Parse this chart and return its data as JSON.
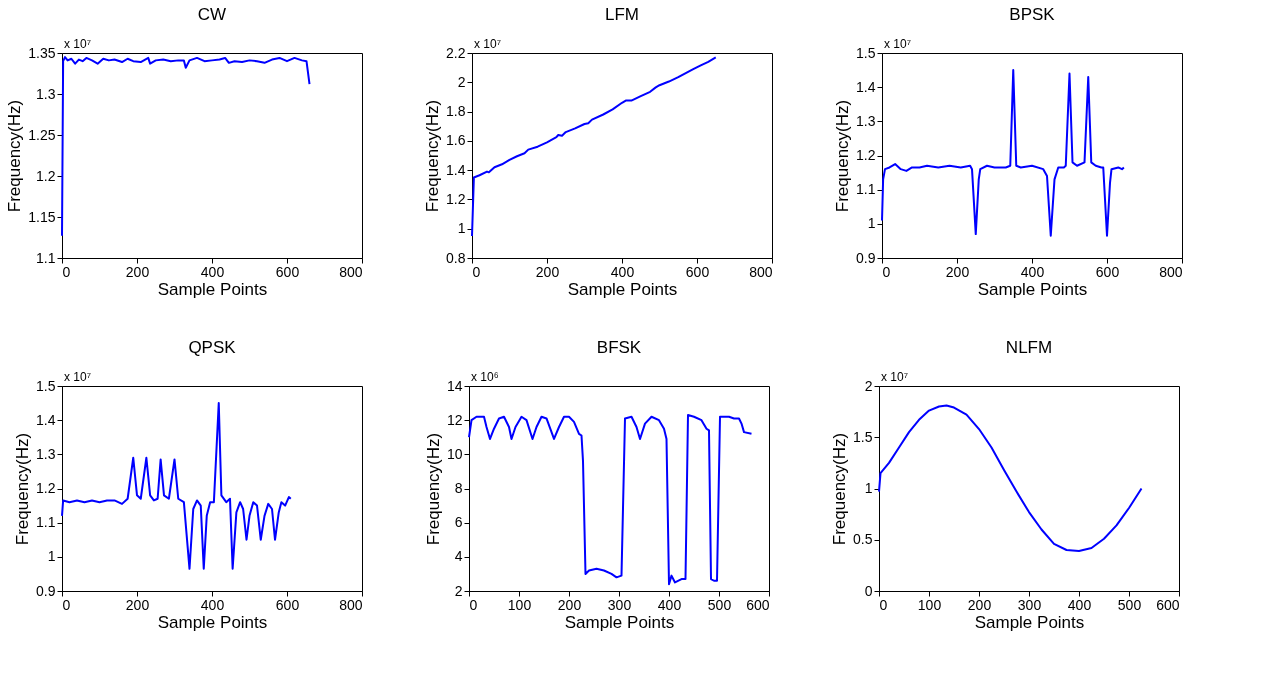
{
  "chart_data": [
    {
      "type": "line",
      "title": "CW",
      "xlabel": "Sample Points",
      "ylabel": "Frequency(Hz)",
      "annotations": [
        "x 10⁷"
      ],
      "xlim": [
        0,
        800
      ],
      "xticks": [
        0,
        200,
        400,
        600,
        800
      ],
      "ylim": [
        1.1,
        1.35
      ],
      "yticks": [
        1.1,
        1.15,
        1.2,
        1.25,
        1.3,
        1.35
      ],
      "grid": false,
      "marker": "none",
      "line_style": "solid",
      "series": [
        {
          "color": "#0000ff",
          "x": [
            0,
            3,
            8,
            15,
            25,
            35,
            45,
            55,
            65,
            80,
            95,
            110,
            125,
            140,
            160,
            175,
            190,
            210,
            230,
            235,
            250,
            270,
            290,
            310,
            325,
            330,
            340,
            360,
            380,
            400,
            420,
            435,
            445,
            460,
            480,
            500,
            520,
            540,
            560,
            580,
            600,
            620,
            640,
            652,
            660
          ],
          "values": [
            1.127,
            1.34,
            1.345,
            1.341,
            1.343,
            1.337,
            1.342,
            1.34,
            1.344,
            1.341,
            1.337,
            1.343,
            1.341,
            1.342,
            1.339,
            1.343,
            1.34,
            1.339,
            1.344,
            1.337,
            1.341,
            1.342,
            1.34,
            1.341,
            1.341,
            1.332,
            1.341,
            1.344,
            1.34,
            1.341,
            1.342,
            1.344,
            1.338,
            1.34,
            1.339,
            1.341,
            1.34,
            1.338,
            1.342,
            1.344,
            1.34,
            1.344,
            1.341,
            1.34,
            1.312
          ]
        }
      ]
    },
    {
      "type": "line",
      "title": "LFM",
      "xlabel": "Sample Points",
      "ylabel": "Frequency(Hz)",
      "annotations": [
        "x 10⁷"
      ],
      "xlim": [
        0,
        800
      ],
      "xticks": [
        0,
        200,
        400,
        600,
        800
      ],
      "ylim": [
        0.8,
        2.2
      ],
      "yticks": [
        0.8,
        1,
        1.2,
        1.4,
        1.6,
        1.8,
        2,
        2.2
      ],
      "grid": false,
      "marker": "none",
      "line_style": "solid",
      "series": [
        {
          "color": "#0000ff",
          "x": [
            0,
            5,
            20,
            40,
            45,
            60,
            80,
            100,
            120,
            140,
            150,
            175,
            200,
            225,
            230,
            240,
            250,
            275,
            300,
            310,
            320,
            350,
            375,
            400,
            410,
            425,
            450,
            475,
            490,
            500,
            525,
            550,
            575,
            590,
            610,
            630,
            650
          ],
          "values": [
            0.95,
            1.35,
            1.365,
            1.39,
            1.385,
            1.42,
            1.44,
            1.47,
            1.495,
            1.515,
            1.54,
            1.56,
            1.59,
            1.625,
            1.64,
            1.635,
            1.66,
            1.685,
            1.715,
            1.72,
            1.745,
            1.78,
            1.815,
            1.86,
            1.875,
            1.875,
            1.905,
            1.935,
            1.965,
            1.98,
            2.005,
            2.035,
            2.07,
            2.09,
            2.115,
            2.14,
            2.17
          ]
        }
      ]
    },
    {
      "type": "line",
      "title": "BPSK",
      "xlabel": "Sample Points",
      "ylabel": "Frequency(Hz)",
      "annotations": [
        "x 10⁷"
      ],
      "xlim": [
        0,
        800
      ],
      "xticks": [
        0,
        200,
        400,
        600,
        800
      ],
      "ylim": [
        0.9,
        1.5
      ],
      "yticks": [
        0.9,
        1,
        1.1,
        1.2,
        1.3,
        1.4,
        1.5
      ],
      "grid": false,
      "marker": "none",
      "line_style": "solid",
      "series": [
        {
          "color": "#0000ff",
          "x": [
            0,
            3,
            8,
            20,
            35,
            50,
            65,
            80,
            100,
            120,
            150,
            180,
            210,
            235,
            240,
            250,
            258,
            262,
            280,
            300,
            330,
            342,
            350,
            358,
            370,
            400,
            430,
            440,
            450,
            460,
            470,
            485,
            490,
            500,
            508,
            520,
            540,
            550,
            558,
            570,
            585,
            590,
            600,
            608,
            612,
            630,
            640,
            645
          ],
          "values": [
            1.01,
            1.13,
            1.16,
            1.165,
            1.175,
            1.16,
            1.155,
            1.165,
            1.165,
            1.17,
            1.165,
            1.17,
            1.165,
            1.17,
            1.16,
            0.97,
            1.13,
            1.16,
            1.17,
            1.165,
            1.165,
            1.17,
            1.45,
            1.17,
            1.165,
            1.17,
            1.16,
            1.14,
            0.965,
            1.13,
            1.165,
            1.165,
            1.17,
            1.44,
            1.18,
            1.17,
            1.18,
            1.43,
            1.18,
            1.17,
            1.165,
            1.165,
            0.965,
            1.12,
            1.16,
            1.165,
            1.16,
            1.165
          ]
        }
      ]
    },
    {
      "type": "line",
      "title": "QPSK",
      "xlabel": "Sample Points",
      "ylabel": "Frequency(Hz)",
      "annotations": [
        "x 10⁷"
      ],
      "xlim": [
        0,
        800
      ],
      "xticks": [
        0,
        200,
        400,
        600,
        800
      ],
      "ylim": [
        0.9,
        1.5
      ],
      "yticks": [
        0.9,
        1,
        1.1,
        1.2,
        1.3,
        1.4,
        1.5
      ],
      "grid": false,
      "marker": "none",
      "line_style": "solid",
      "series": [
        {
          "color": "#0000ff",
          "x": [
            0,
            3,
            20,
            40,
            60,
            80,
            100,
            120,
            140,
            160,
            175,
            190,
            200,
            210,
            225,
            235,
            245,
            255,
            263,
            272,
            285,
            300,
            310,
            325,
            340,
            350,
            360,
            370,
            378,
            386,
            395,
            405,
            418,
            425,
            438,
            448,
            455,
            465,
            475,
            483,
            492,
            500,
            510,
            520,
            530,
            540,
            550,
            560,
            568,
            578,
            585,
            595,
            605,
            610
          ],
          "values": [
            1.12,
            1.165,
            1.16,
            1.165,
            1.16,
            1.165,
            1.16,
            1.165,
            1.165,
            1.155,
            1.17,
            1.29,
            1.18,
            1.17,
            1.29,
            1.18,
            1.165,
            1.17,
            1.285,
            1.18,
            1.17,
            1.285,
            1.17,
            1.16,
            0.965,
            1.14,
            1.165,
            1.15,
            0.965,
            1.12,
            1.16,
            1.16,
            1.45,
            1.18,
            1.16,
            1.17,
            0.965,
            1.13,
            1.16,
            1.14,
            1.05,
            1.12,
            1.16,
            1.15,
            1.05,
            1.12,
            1.155,
            1.14,
            1.05,
            1.13,
            1.16,
            1.15,
            1.175,
            1.17
          ]
        }
      ]
    },
    {
      "type": "line",
      "title": "BFSK",
      "xlabel": "Sample Points",
      "ylabel": "Frequency(Hz)",
      "annotations": [
        "x 10⁶"
      ],
      "xlim": [
        0,
        600
      ],
      "xticks": [
        0,
        100,
        200,
        300,
        400,
        500,
        600
      ],
      "ylim": [
        2,
        14
      ],
      "yticks": [
        2,
        4,
        6,
        8,
        10,
        12,
        14
      ],
      "grid": false,
      "marker": "none",
      "line_style": "solid",
      "series": [
        {
          "color": "#0000ff",
          "x": [
            0,
            5,
            15,
            30,
            35,
            42,
            50,
            60,
            70,
            80,
            85,
            93,
            105,
            115,
            127,
            135,
            145,
            155,
            170,
            180,
            190,
            200,
            210,
            220,
            225,
            228,
            233,
            240,
            255,
            270,
            285,
            295,
            305,
            312,
            325,
            335,
            342,
            352,
            365,
            380,
            390,
            395,
            400,
            405,
            412,
            425,
            433,
            438,
            450,
            465,
            475,
            480,
            484,
            490,
            496,
            502,
            520,
            530,
            540,
            545,
            550,
            565
          ],
          "values": [
            11.0,
            12.0,
            12.2,
            12.2,
            11.6,
            10.9,
            11.5,
            12.1,
            12.2,
            11.6,
            10.9,
            11.6,
            12.2,
            12.0,
            10.9,
            11.6,
            12.2,
            12.1,
            10.9,
            11.6,
            12.2,
            12.2,
            11.9,
            11.2,
            11.1,
            9.6,
            3.0,
            3.2,
            3.3,
            3.2,
            3.0,
            2.8,
            2.9,
            12.1,
            12.2,
            11.6,
            10.9,
            11.8,
            12.2,
            12.0,
            11.5,
            10.9,
            2.4,
            2.9,
            2.5,
            2.7,
            2.7,
            12.3,
            12.2,
            12.0,
            11.5,
            11.4,
            2.7,
            2.6,
            2.6,
            12.2,
            12.2,
            12.1,
            12.1,
            11.8,
            11.3,
            11.2
          ]
        }
      ]
    },
    {
      "type": "line",
      "title": "NLFM",
      "xlabel": "Sample Points",
      "ylabel": "Frequency(Hz)",
      "annotations": [
        "x 10⁷"
      ],
      "xlim": [
        0,
        600
      ],
      "xticks": [
        0,
        100,
        200,
        300,
        400,
        500,
        600
      ],
      "ylim": [
        0,
        2
      ],
      "yticks": [
        0,
        0.5,
        1,
        1.5,
        2
      ],
      "grid": false,
      "marker": "none",
      "line_style": "solid",
      "series": [
        {
          "color": "#0000ff",
          "x": [
            0,
            3,
            20,
            40,
            60,
            80,
            100,
            120,
            135,
            150,
            175,
            200,
            225,
            250,
            275,
            300,
            325,
            350,
            375,
            400,
            425,
            450,
            475,
            500,
            525
          ],
          "values": [
            0.97,
            1.15,
            1.25,
            1.4,
            1.55,
            1.67,
            1.76,
            1.8,
            1.81,
            1.79,
            1.72,
            1.58,
            1.4,
            1.18,
            0.97,
            0.77,
            0.6,
            0.46,
            0.4,
            0.39,
            0.42,
            0.51,
            0.64,
            0.81,
            1.0
          ]
        }
      ]
    }
  ]
}
